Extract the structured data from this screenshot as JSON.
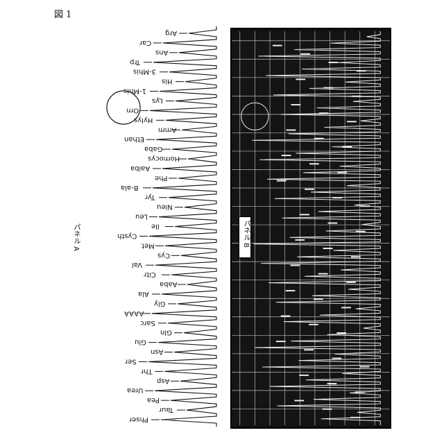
{
  "figure_label": "図 1",
  "panel_a": {
    "label": "パネル A",
    "circled_peak": "Orn",
    "peaks": [
      "Arg",
      "Car",
      "Ans",
      "Trp",
      "3-Mhis",
      "His",
      "1-Mhis",
      "Lys",
      "Orn",
      "Hylys",
      "Amm",
      "Ethan",
      "Gaba",
      "Homocys",
      "Aaiba",
      "Phe",
      "B-ala",
      "Tyr",
      "Nleu",
      "Leu",
      "Ile",
      "Cysth",
      "Met",
      "Cys",
      "Val",
      "Citr",
      "Aaba",
      "Ala",
      "Gly",
      "AAAA",
      "Sarc",
      "Gln",
      "Glu",
      "Asn",
      "Ser",
      "Thr",
      "Asp",
      "Urea",
      "Pea",
      "Taur",
      "Phser"
    ]
  },
  "panel_b": {
    "label": "パネル B"
  }
}
